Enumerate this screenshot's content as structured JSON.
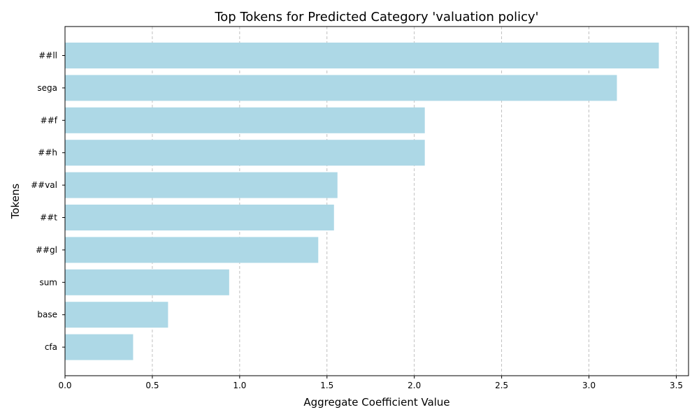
{
  "chart_data": {
    "type": "bar",
    "orientation": "horizontal",
    "title": "Top Tokens for Predicted Category 'valuation policy'",
    "xlabel": "Aggregate Coefficient Value",
    "ylabel": "Tokens",
    "categories": [
      "##ll",
      "sega",
      "##f",
      "##h",
      "##val",
      "##t",
      "##gl",
      "sum",
      "base",
      "cfa"
    ],
    "values": [
      3.4,
      3.16,
      2.06,
      2.06,
      1.56,
      1.54,
      1.45,
      0.94,
      0.59,
      0.39
    ],
    "xlim": [
      0,
      3.57
    ],
    "xticks": [
      "0.0",
      "0.5",
      "1.0",
      "1.5",
      "2.0",
      "2.5",
      "3.0",
      "3.5"
    ],
    "grid": "x-dashed",
    "bar_color": "#add8e6",
    "grid_color": "#b0b0b0"
  }
}
